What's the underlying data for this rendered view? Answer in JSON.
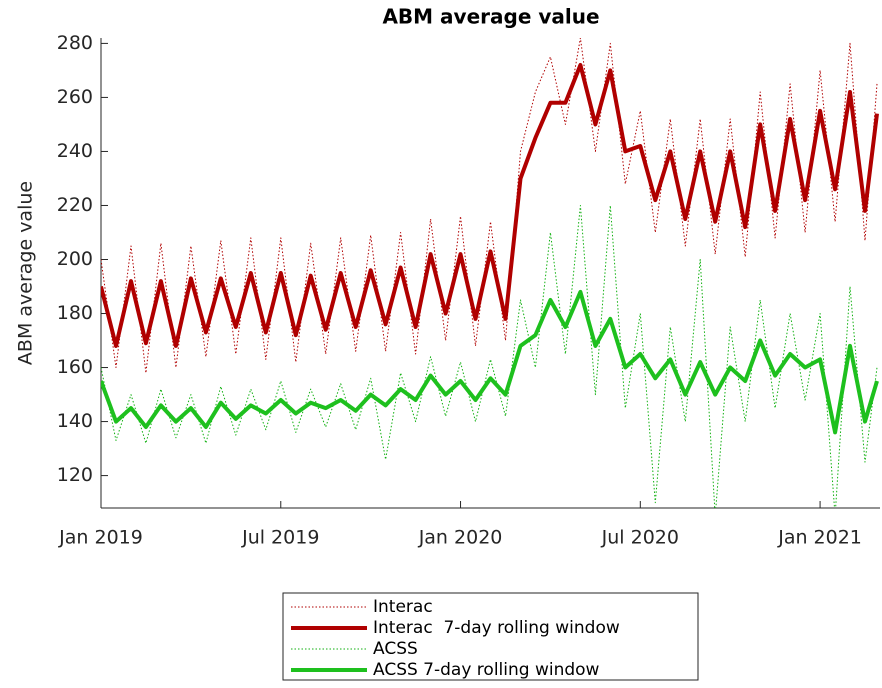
{
  "chart_data": {
    "type": "line",
    "title": "ABM average value",
    "y_label": "ABM average value",
    "x": [
      0,
      0.5,
      1,
      1.5,
      2,
      2.5,
      3,
      3.5,
      4,
      4.5,
      5,
      5.5,
      6,
      6.5,
      7,
      7.5,
      8,
      8.5,
      9,
      9.5,
      10,
      10.5,
      11,
      11.5,
      12,
      12.5,
      13,
      13.5,
      14,
      14.5,
      15,
      15.5,
      16,
      16.5,
      17,
      17.5,
      18,
      18.5,
      19,
      19.5,
      20,
      20.5,
      21,
      21.5,
      22,
      22.5,
      23,
      23.5,
      24,
      24.5,
      25,
      25.5,
      25.9
    ],
    "xlim": [
      0,
      26
    ],
    "xticks": [
      {
        "value": 0,
        "label": "Jan 2019"
      },
      {
        "value": 6,
        "label": "Jul 2019"
      },
      {
        "value": 12,
        "label": "Jan 2020"
      },
      {
        "value": 18,
        "label": "Jul 2020"
      },
      {
        "value": 24,
        "label": "Jan 2021"
      }
    ],
    "ylim": [
      108,
      282
    ],
    "yticks": [
      120,
      140,
      160,
      180,
      200,
      220,
      240,
      260,
      280
    ],
    "legend": "south outside",
    "series": [
      {
        "name": "Interac",
        "color": "#b00000",
        "style": "dotted",
        "width": 1,
        "values": [
          200,
          160,
          205,
          158,
          206,
          160,
          205,
          164,
          207,
          165,
          208,
          163,
          208,
          162,
          206,
          165,
          208,
          166,
          209,
          166,
          210,
          165,
          215,
          170,
          216,
          168,
          214,
          170,
          240,
          262,
          275,
          250,
          282,
          240,
          280,
          228,
          255,
          210,
          252,
          205,
          252,
          202,
          252,
          201,
          262,
          208,
          265,
          210,
          270,
          214,
          280,
          207,
          265
        ]
      },
      {
        "name": "Interac  7-day rolling window",
        "color": "#b00000",
        "style": "solid",
        "width": 4,
        "values": [
          190,
          168,
          192,
          169,
          192,
          168,
          193,
          173,
          193,
          175,
          195,
          173,
          195,
          172,
          194,
          174,
          195,
          175,
          196,
          176,
          197,
          175,
          202,
          180,
          202,
          178,
          203,
          178,
          230,
          245,
          258,
          258,
          272,
          250,
          270,
          240,
          242,
          222,
          240,
          215,
          240,
          214,
          240,
          212,
          250,
          218,
          252,
          222,
          255,
          226,
          262,
          218,
          254
        ]
      },
      {
        "name": "ACSS",
        "color": "#10b010",
        "style": "dotted",
        "width": 1,
        "values": [
          160,
          133,
          150,
          132,
          152,
          134,
          150,
          132,
          153,
          135,
          152,
          137,
          155,
          136,
          152,
          138,
          154,
          137,
          156,
          126,
          158,
          140,
          164,
          142,
          162,
          140,
          163,
          142,
          185,
          160,
          210,
          165,
          220,
          150,
          220,
          145,
          180,
          110,
          175,
          140,
          200,
          105,
          175,
          140,
          185,
          145,
          180,
          148,
          180,
          105,
          190,
          125,
          160
        ]
      },
      {
        "name": "ACSS 7-day rolling window",
        "color": "#1ec01e",
        "style": "solid",
        "width": 4,
        "values": [
          155,
          140,
          145,
          138,
          146,
          140,
          145,
          138,
          147,
          141,
          146,
          143,
          148,
          143,
          147,
          145,
          148,
          144,
          150,
          146,
          152,
          148,
          157,
          150,
          155,
          148,
          156,
          150,
          168,
          172,
          185,
          175,
          188,
          168,
          178,
          160,
          165,
          156,
          163,
          150,
          162,
          150,
          160,
          155,
          170,
          157,
          165,
          160,
          163,
          136,
          168,
          140,
          155
        ]
      }
    ]
  }
}
